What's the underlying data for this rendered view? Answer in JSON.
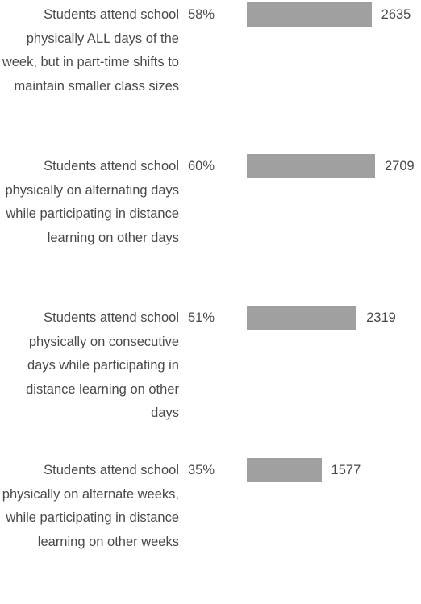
{
  "chart_data": {
    "type": "bar",
    "orientation": "horizontal",
    "categories": [
      "Students attend school physically ALL days of the week, but in part-time shifts to maintain smaller class sizes",
      "Students attend school physically on alternating days while participating in distance learning on other days",
      "Students attend school physically on consecutive days while participating in distance learning on other days",
      "Students attend school physically on alternate weeks, while participating in distance learning on other weeks"
    ],
    "percent_labels": [
      "58%",
      "60%",
      "51%",
      "35%"
    ],
    "values": [
      2635,
      2709,
      2319,
      1577
    ],
    "color": "#a0a0a0"
  }
}
